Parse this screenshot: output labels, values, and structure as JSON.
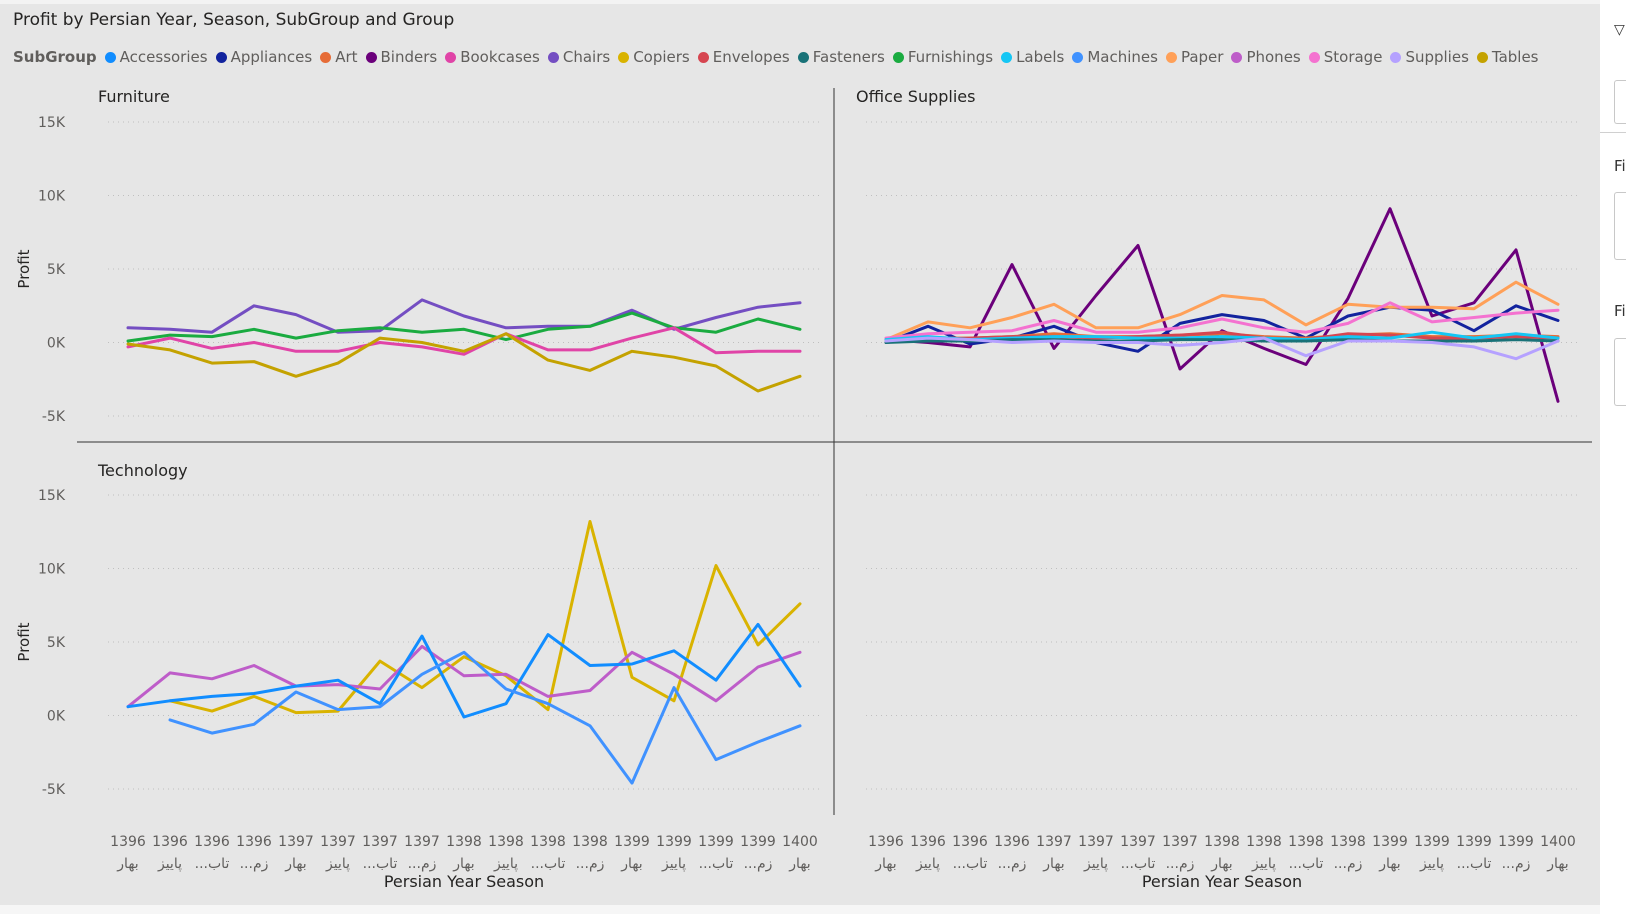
{
  "title": "Profit by Persian Year, Season, SubGroup and Group",
  "legend": {
    "title": "SubGroup",
    "items": [
      {
        "name": "Accessories",
        "color": "#118DFF"
      },
      {
        "name": "Appliances",
        "color": "#12239E"
      },
      {
        "name": "Art",
        "color": "#E66C37"
      },
      {
        "name": "Binders",
        "color": "#6B007B"
      },
      {
        "name": "Bookcases",
        "color": "#E044A7"
      },
      {
        "name": "Chairs",
        "color": "#744EC2"
      },
      {
        "name": "Copiers",
        "color": "#D9B300"
      },
      {
        "name": "Envelopes",
        "color": "#D64550"
      },
      {
        "name": "Fasteners",
        "color": "#197278"
      },
      {
        "name": "Furnishings",
        "color": "#1AAB40"
      },
      {
        "name": "Labels",
        "color": "#15C6F4"
      },
      {
        "name": "Machines",
        "color": "#4092FF"
      },
      {
        "name": "Paper",
        "color": "#FFA058"
      },
      {
        "name": "Phones",
        "color": "#BE5DC9"
      },
      {
        "name": "Storage",
        "color": "#F472D0"
      },
      {
        "name": "Supplies",
        "color": "#B5A1FF"
      },
      {
        "name": "Tables",
        "color": "#C4A200"
      }
    ]
  },
  "filter_pane": {
    "label_1": "Fi",
    "label_2": "Fi",
    "funnel_icon": "funnel-icon"
  },
  "chart_data": {
    "type": "line",
    "title": "Profit by Persian Year, Season, SubGroup and Group",
    "xlabel": "Persian Year Season",
    "ylabel": "Profit",
    "ylim": [
      -7000,
      17000
    ],
    "yticks": [
      {
        "value": 15000,
        "label": "15K"
      },
      {
        "value": 10000,
        "label": "10K"
      },
      {
        "value": 5000,
        "label": "5K"
      },
      {
        "value": 0,
        "label": "0K"
      },
      {
        "value": -5000,
        "label": "-5K"
      }
    ],
    "grid": true,
    "legend_position": "top-left",
    "x_categories": [
      {
        "year": "1396",
        "season": "بهار"
      },
      {
        "year": "1396",
        "season": "پاییز"
      },
      {
        "year": "1396",
        "season": "...تاب"
      },
      {
        "year": "1396",
        "season": "...زم"
      },
      {
        "year": "1397",
        "season": "بهار"
      },
      {
        "year": "1397",
        "season": "پاییز"
      },
      {
        "year": "1397",
        "season": "...تاب"
      },
      {
        "year": "1397",
        "season": "...زم"
      },
      {
        "year": "1398",
        "season": "بهار"
      },
      {
        "year": "1398",
        "season": "پاییز"
      },
      {
        "year": "1398",
        "season": "...تاب"
      },
      {
        "year": "1398",
        "season": "...زم"
      },
      {
        "year": "1399",
        "season": "بهار"
      },
      {
        "year": "1399",
        "season": "پاییز"
      },
      {
        "year": "1399",
        "season": "...تاب"
      },
      {
        "year": "1399",
        "season": "...زم"
      },
      {
        "year": "1400",
        "season": "بهار"
      }
    ],
    "panels": [
      {
        "name": "Furniture",
        "series": [
          {
            "name": "Chairs",
            "color": "#744EC2",
            "values": [
              1000,
              900,
              700,
              2500,
              1900,
              700,
              800,
              2900,
              1800,
              1000,
              1100,
              1100,
              2200,
              900,
              1700,
              2400,
              2700
            ]
          },
          {
            "name": "Furnishings",
            "color": "#1AAB40",
            "values": [
              100,
              500,
              400,
              900,
              300,
              800,
              1000,
              700,
              900,
              200,
              900,
              1100,
              2000,
              1000,
              700,
              1600,
              900
            ]
          },
          {
            "name": "Bookcases",
            "color": "#E044A7",
            "values": [
              -300,
              300,
              -400,
              0,
              -600,
              -600,
              0,
              -300,
              -800,
              600,
              -500,
              -500,
              300,
              1000,
              -700,
              -600,
              -600
            ]
          },
          {
            "name": "Tables",
            "color": "#C4A200",
            "values": [
              -100,
              -500,
              -1400,
              -1300,
              -2300,
              -1400,
              300,
              0,
              -600,
              600,
              -1200,
              -1900,
              -600,
              -1000,
              -1600,
              -3300,
              -2300
            ]
          }
        ]
      },
      {
        "name": "Office Supplies",
        "series": [
          {
            "name": "Binders",
            "color": "#6B007B",
            "values": [
              200,
              0,
              -300,
              5300,
              -400,
              3200,
              6600,
              -1800,
              800,
              -400,
              -1500,
              3000,
              9100,
              1800,
              2700,
              6300,
              -4000
            ]
          },
          {
            "name": "Appliances",
            "color": "#12239E",
            "values": [
              0,
              1100,
              -100,
              300,
              1100,
              0,
              -600,
              1300,
              1900,
              1500,
              300,
              1800,
              2400,
              2200,
              800,
              2500,
              1500
            ]
          },
          {
            "name": "Paper",
            "color": "#FFA058",
            "values": [
              200,
              1400,
              1000,
              1700,
              2600,
              1000,
              1000,
              1900,
              3200,
              2900,
              1200,
              2600,
              2400,
              2400,
              2300,
              4100,
              2600
            ]
          },
          {
            "name": "Storage",
            "color": "#F472D0",
            "values": [
              300,
              600,
              700,
              800,
              1500,
              700,
              700,
              1000,
              1600,
              1000,
              700,
              1300,
              2700,
              1400,
              1700,
              2000,
              2200
            ]
          },
          {
            "name": "Art",
            "color": "#E66C37",
            "values": [
              200,
              300,
              300,
              400,
              600,
              400,
              400,
              500,
              600,
              400,
              300,
              500,
              600,
              400,
              400,
              500,
              400
            ]
          },
          {
            "name": "Envelopes",
            "color": "#D64550",
            "values": [
              100,
              200,
              300,
              400,
              400,
              300,
              400,
              500,
              700,
              300,
              200,
              600,
              500,
              300,
              300,
              400,
              300
            ]
          },
          {
            "name": "Labels",
            "color": "#15C6F4",
            "values": [
              200,
              400,
              200,
              300,
              400,
              400,
              300,
              300,
              400,
              300,
              200,
              400,
              300,
              700,
              300,
              600,
              300
            ]
          },
          {
            "name": "Fasteners",
            "color": "#197278",
            "values": [
              0,
              100,
              100,
              200,
              200,
              100,
              100,
              200,
              200,
              100,
              100,
              200,
              100,
              100,
              100,
              200,
              100
            ]
          },
          {
            "name": "Supplies",
            "color": "#B5A1FF",
            "values": [
              100,
              300,
              200,
              0,
              100,
              0,
              0,
              -200,
              0,
              300,
              -900,
              100,
              100,
              0,
              -300,
              -1100,
              100
            ]
          }
        ]
      },
      {
        "name": "Technology",
        "series": [
          {
            "name": "Copiers",
            "color": "#D9B300",
            "values": [
              null,
              1000,
              300,
              1300,
              200,
              300,
              3700,
              1900,
              4000,
              2700,
              400,
              13200,
              2600,
              1000,
              10200,
              4800,
              7600
            ]
          },
          {
            "name": "Phones",
            "color": "#BE5DC9",
            "values": [
              600,
              2900,
              2500,
              3400,
              2000,
              2100,
              1800,
              4700,
              2700,
              2800,
              1300,
              1700,
              4300,
              2800,
              1000,
              3300,
              4300
            ]
          },
          {
            "name": "Accessories",
            "color": "#118DFF",
            "values": [
              600,
              1000,
              1300,
              1500,
              2000,
              2400,
              800,
              5400,
              -100,
              800,
              5500,
              3400,
              3500,
              4400,
              2400,
              6200,
              2000
            ]
          },
          {
            "name": "Machines",
            "color": "#4092FF",
            "values": [
              null,
              -300,
              -1200,
              -600,
              1600,
              400,
              600,
              2800,
              4300,
              1800,
              800,
              -700,
              -4600,
              1900,
              -3000,
              -1800,
              -700
            ]
          }
        ]
      }
    ]
  }
}
